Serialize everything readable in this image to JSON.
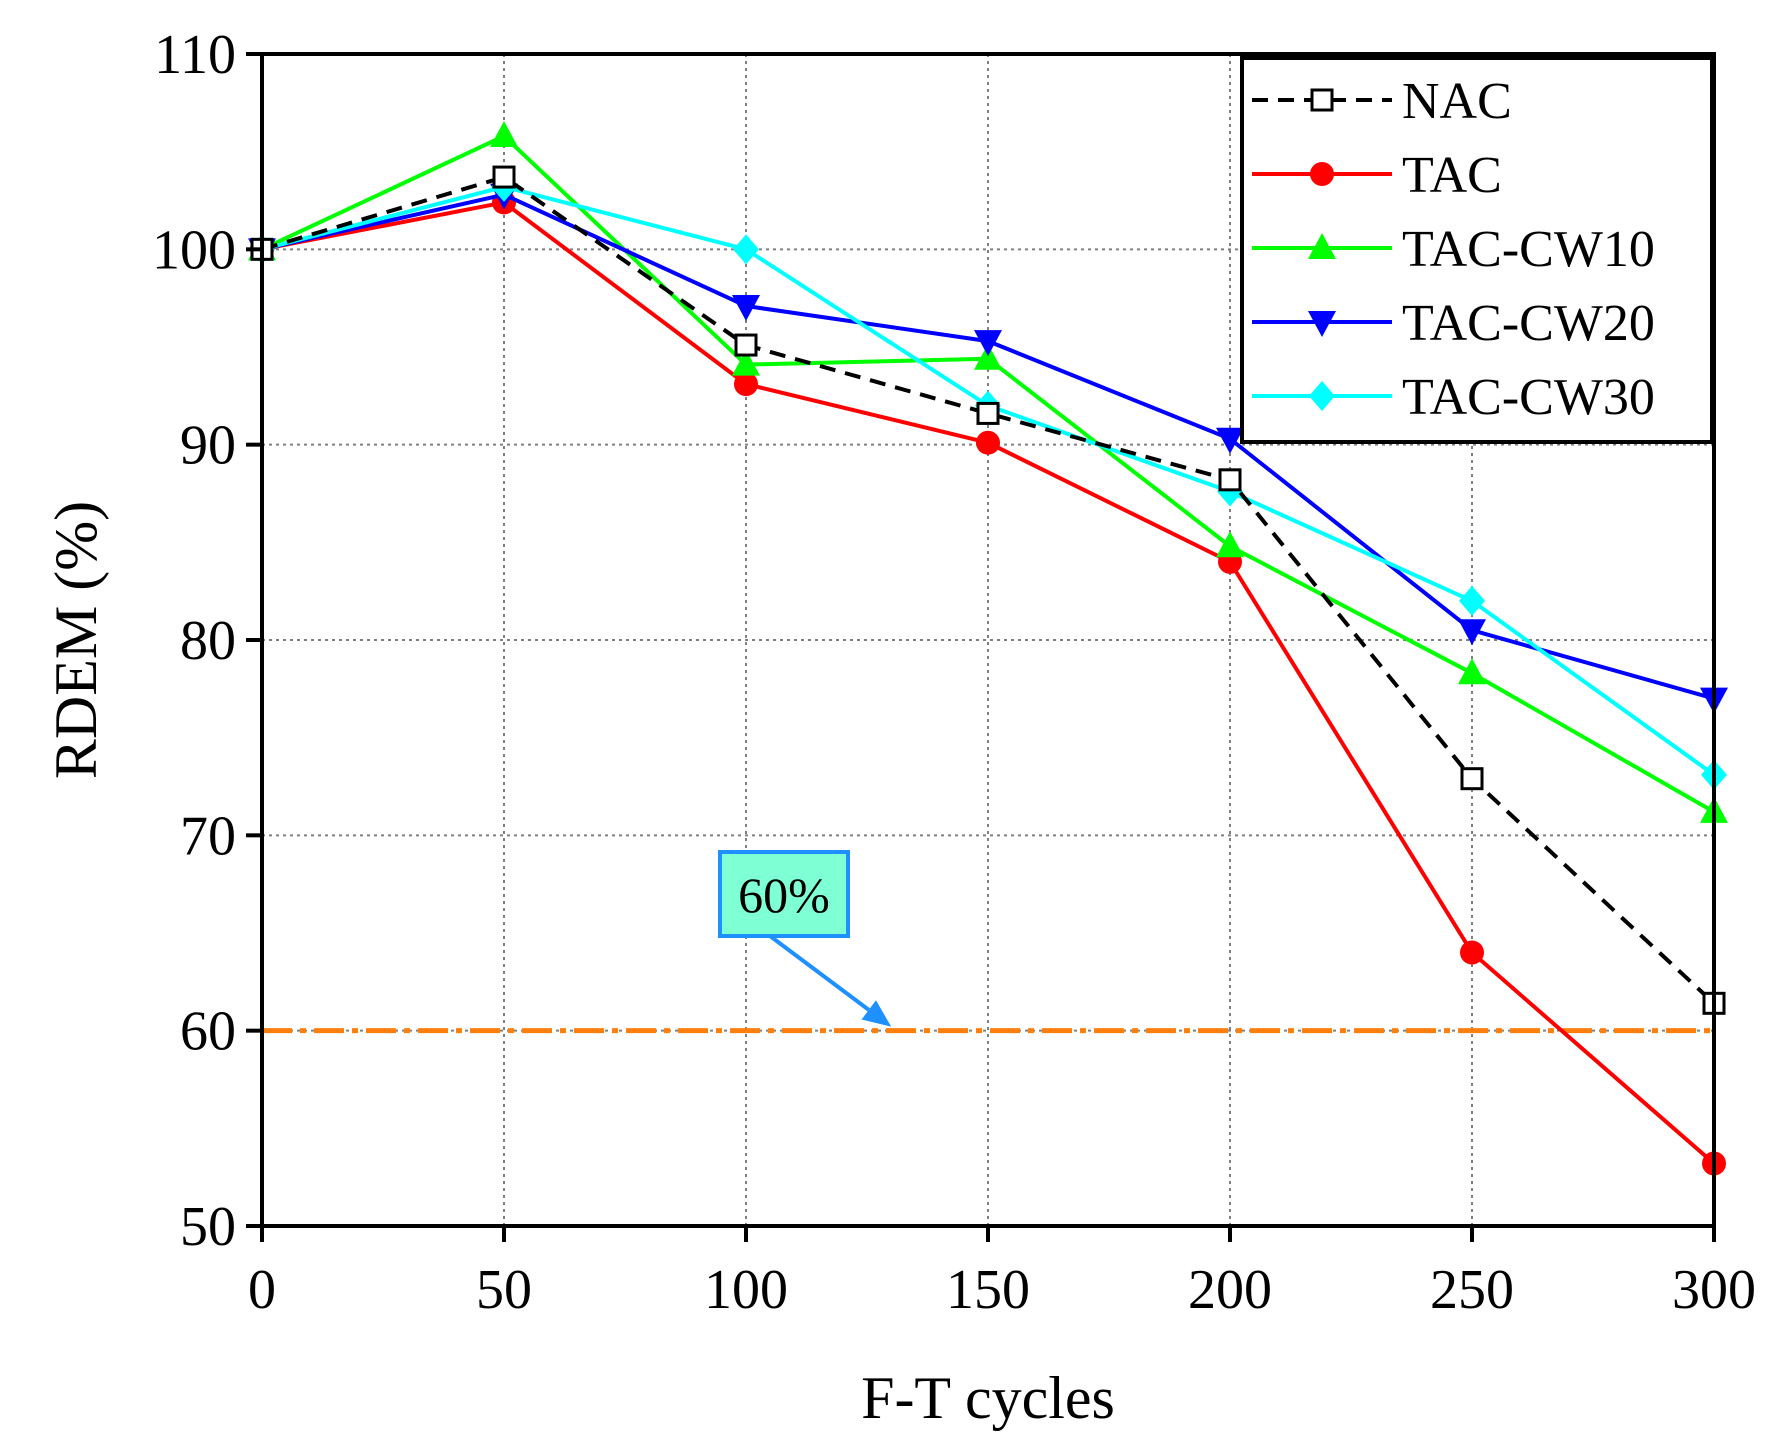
{
  "chart_data": {
    "type": "line",
    "title": "",
    "xlabel": "F-T cycles",
    "ylabel": "RDEM (%)",
    "x": [
      0,
      50,
      100,
      150,
      200,
      250,
      300
    ],
    "xlim": [
      0,
      300
    ],
    "ylim": [
      50,
      110
    ],
    "xticks": [
      0,
      50,
      100,
      150,
      200,
      250,
      300
    ],
    "yticks": [
      50,
      60,
      70,
      80,
      90,
      100,
      110
    ],
    "grid": true,
    "legend_position": "top-right",
    "series": [
      {
        "name": "NAC",
        "color": "#000000",
        "dash": "dashed",
        "marker": "open-square",
        "values": [
          100,
          103.7,
          95.1,
          91.6,
          88.2,
          72.9,
          61.4
        ]
      },
      {
        "name": "TAC",
        "color": "#ff0000",
        "dash": "solid",
        "marker": "circle",
        "values": [
          100,
          102.4,
          93.1,
          90.1,
          84.0,
          64.0,
          53.2
        ]
      },
      {
        "name": "TAC-CW10",
        "color": "#00ff00",
        "dash": "solid",
        "marker": "triangle-up",
        "values": [
          100,
          105.8,
          94.1,
          94.4,
          84.8,
          78.3,
          71.2
        ]
      },
      {
        "name": "TAC-CW20",
        "color": "#0000ff",
        "dash": "solid",
        "marker": "triangle-down",
        "values": [
          100,
          102.8,
          97.1,
          95.3,
          90.3,
          80.5,
          77.0
        ]
      },
      {
        "name": "TAC-CW30",
        "color": "#00ffff",
        "dash": "solid",
        "marker": "diamond",
        "values": [
          100,
          103.2,
          100.0,
          92.0,
          87.6,
          82.0,
          73.1
        ]
      }
    ],
    "reference_line": {
      "value": 60,
      "color": "#ff7f0e",
      "style": "dash-dot"
    },
    "annotation": {
      "text": "60%",
      "arrow_target": [
        130,
        60
      ],
      "box_fill": "#7fffd4",
      "box_stroke": "#1e90ff",
      "arrow_color": "#1e90ff"
    }
  }
}
